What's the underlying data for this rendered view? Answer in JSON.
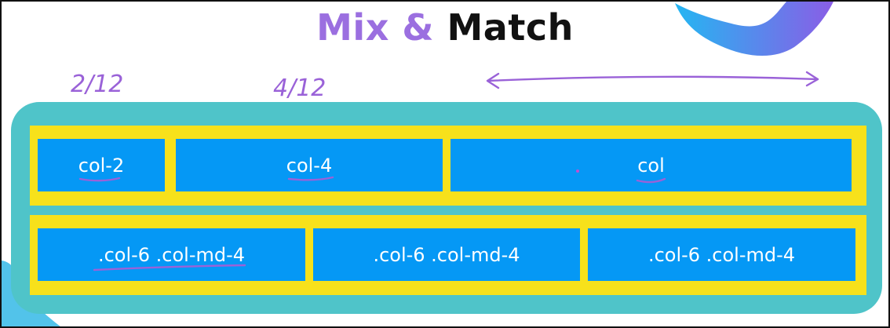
{
  "title": {
    "part1": "Mix &",
    "part2": "Match"
  },
  "annotations": {
    "left_fraction": "2/12",
    "middle_fraction": "4/12"
  },
  "rows": [
    {
      "cols": [
        "col-2",
        "col-4",
        "col"
      ]
    },
    {
      "cols": [
        ".col-6 .col-md-4",
        ".col-6 .col-md-4",
        ".col-6 .col-md-4"
      ]
    }
  ],
  "colors": {
    "container": "#4fc4c9",
    "row": "#f7e11b",
    "col": "#0598f5",
    "accent": "#9b6fe0",
    "ink": "#9a62d8"
  }
}
